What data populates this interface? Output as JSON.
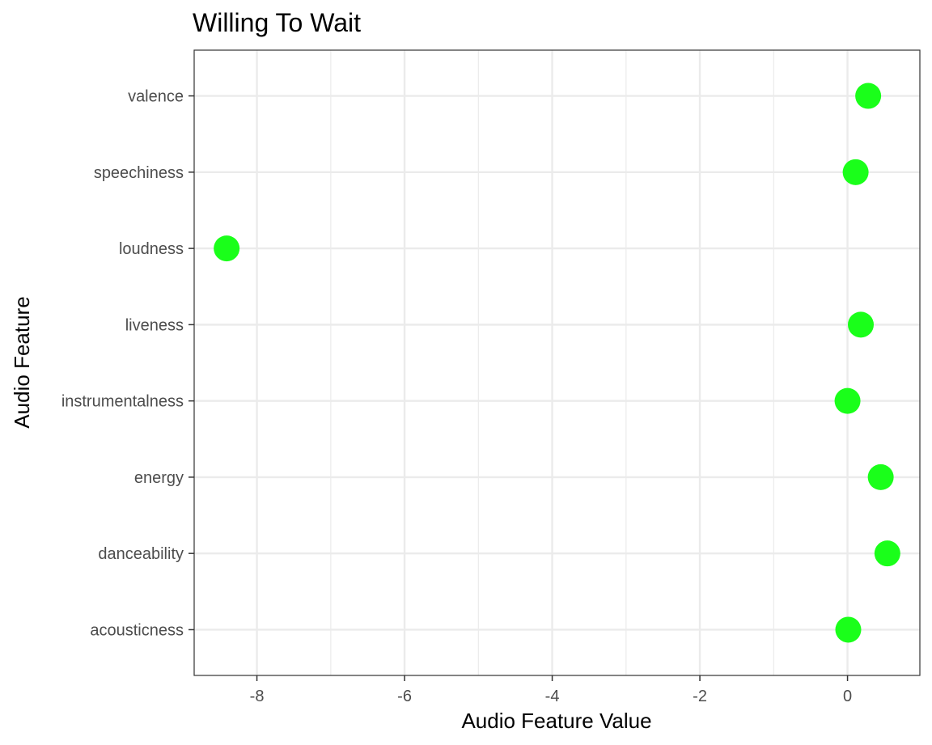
{
  "chart_data": {
    "type": "scatter",
    "title": "Willing To Wait",
    "xlabel": "Audio Feature Value",
    "ylabel": "Audio Feature",
    "xlim": [
      -8.85,
      0.98
    ],
    "x_ticks": [
      -8,
      -6,
      -4,
      -2,
      0
    ],
    "x_tick_labels": [
      "-8",
      "-6",
      "-4",
      "-2",
      "0"
    ],
    "categories": [
      "acousticness",
      "danceability",
      "energy",
      "instrumentalness",
      "liveness",
      "loudness",
      "speechiness",
      "valence"
    ],
    "values": [
      0.01,
      0.54,
      0.45,
      0.0,
      0.18,
      -8.41,
      0.11,
      0.28
    ],
    "grid": true,
    "point_color": "#1aff1a",
    "panel_border_color": "#333333",
    "grid_color": "#ebebeb"
  }
}
